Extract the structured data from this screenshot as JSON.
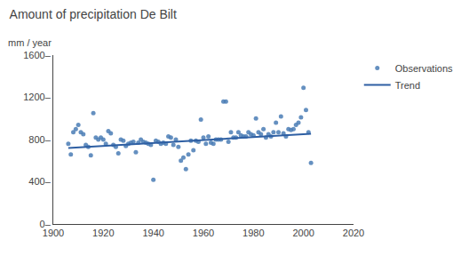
{
  "chart_data": {
    "type": "scatter",
    "title": "Amount of precipitation De Bilt",
    "ylabel": "mm / year",
    "xlim": [
      1900,
      2020
    ],
    "ylim": [
      0,
      1600
    ],
    "xticks": [
      1900,
      1920,
      1940,
      1960,
      1980,
      2000,
      2020
    ],
    "yticks": [
      {
        "value": 0,
        "label": "0–"
      },
      {
        "value": 400,
        "label": "400–"
      },
      {
        "value": 800,
        "label": "800–"
      },
      {
        "value": 1200,
        "label": "1200–"
      },
      {
        "value": 1600,
        "label": "1600–"
      }
    ],
    "grid": false,
    "legend": "right",
    "series": [
      {
        "name": "Observations",
        "type": "scatter",
        "marker": "circle",
        "color": "#4a7db5",
        "x": [
          1906,
          1907,
          1908,
          1909,
          1910,
          1911,
          1912,
          1913,
          1914,
          1915,
          1916,
          1917,
          1918,
          1919,
          1920,
          1921,
          1922,
          1923,
          1924,
          1925,
          1926,
          1927,
          1928,
          1929,
          1930,
          1931,
          1932,
          1933,
          1934,
          1935,
          1936,
          1937,
          1938,
          1939,
          1940,
          1941,
          1942,
          1943,
          1944,
          1945,
          1946,
          1947,
          1948,
          1949,
          1950,
          1951,
          1952,
          1953,
          1954,
          1955,
          1956,
          1957,
          1958,
          1959,
          1960,
          1961,
          1962,
          1963,
          1964,
          1965,
          1966,
          1967,
          1968,
          1969,
          1970,
          1971,
          1972,
          1973,
          1974,
          1975,
          1976,
          1977,
          1978,
          1979,
          1980,
          1981,
          1982,
          1983,
          1984,
          1985,
          1986,
          1987,
          1988,
          1989,
          1990,
          1991,
          1992,
          1993,
          1994,
          1995,
          1996,
          1997,
          1998,
          1999,
          2000,
          2001,
          2002,
          2003
        ],
        "values": [
          760,
          660,
          870,
          900,
          940,
          870,
          850,
          750,
          730,
          650,
          1050,
          820,
          800,
          820,
          800,
          760,
          880,
          860,
          750,
          730,
          670,
          800,
          790,
          740,
          760,
          770,
          780,
          680,
          770,
          800,
          780,
          770,
          760,
          750,
          420,
          790,
          780,
          760,
          770,
          760,
          830,
          820,
          750,
          800,
          730,
          600,
          630,
          520,
          660,
          790,
          700,
          790,
          780,
          990,
          820,
          760,
          830,
          770,
          760,
          800,
          800,
          800,
          1160,
          1160,
          780,
          870,
          820,
          820,
          870,
          840,
          830,
          830,
          870,
          850,
          840,
          1000,
          870,
          850,
          900,
          820,
          850,
          830,
          870,
          960,
          870,
          1020,
          860,
          830,
          900,
          890,
          900,
          940,
          960,
          1010,
          1290,
          1080,
          870,
          580
        ]
      },
      {
        "name": "Trend",
        "type": "line",
        "color": "#2e5fa3",
        "x": [
          1906,
          2003
        ],
        "values": [
          720,
          855
        ]
      }
    ]
  }
}
